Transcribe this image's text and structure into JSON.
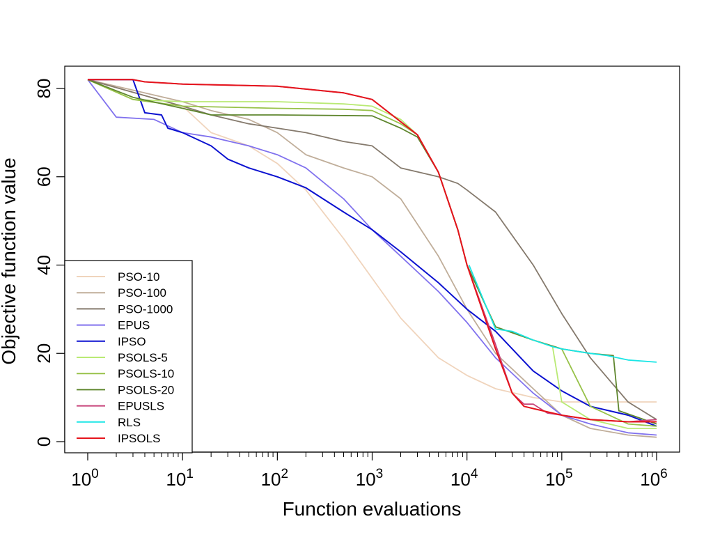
{
  "chart_data": {
    "type": "line",
    "title": "",
    "xlabel": "Function evaluations",
    "ylabel": "Objective function value",
    "xscale": "log10",
    "xlim": [
      1,
      1000000
    ],
    "ylim": [
      0,
      82
    ],
    "x_ticks": [
      {
        "base": "10",
        "exp": "0",
        "value": 1
      },
      {
        "base": "10",
        "exp": "1",
        "value": 10
      },
      {
        "base": "10",
        "exp": "2",
        "value": 100
      },
      {
        "base": "10",
        "exp": "3",
        "value": 1000
      },
      {
        "base": "10",
        "exp": "4",
        "value": 10000
      },
      {
        "base": "10",
        "exp": "5",
        "value": 100000
      },
      {
        "base": "10",
        "exp": "6",
        "value": 1000000
      }
    ],
    "y_ticks": [
      {
        "label": "0",
        "value": 0
      },
      {
        "label": "20",
        "value": 20
      },
      {
        "label": "40",
        "value": 40
      },
      {
        "label": "60",
        "value": 60
      },
      {
        "label": "80",
        "value": 80
      }
    ],
    "legend_position": "bottom-left",
    "series": [
      {
        "name": "PSO-10",
        "color": "#f0d4bc",
        "points": [
          [
            1,
            82
          ],
          [
            10,
            76
          ],
          [
            20,
            70
          ],
          [
            50,
            67
          ],
          [
            100,
            63
          ],
          [
            200,
            57
          ],
          [
            500,
            46
          ],
          [
            1000,
            37
          ],
          [
            2000,
            28
          ],
          [
            5000,
            19
          ],
          [
            10000,
            15
          ],
          [
            20000,
            12
          ],
          [
            50000,
            10
          ],
          [
            100000,
            9
          ],
          [
            1000000,
            9
          ]
        ]
      },
      {
        "name": "PSO-100",
        "color": "#c0ae9a",
        "points": [
          [
            1,
            82
          ],
          [
            10,
            77
          ],
          [
            20,
            75
          ],
          [
            50,
            73
          ],
          [
            100,
            70
          ],
          [
            200,
            65
          ],
          [
            500,
            62
          ],
          [
            1000,
            60
          ],
          [
            2000,
            55
          ],
          [
            5000,
            42
          ],
          [
            10000,
            30
          ],
          [
            20000,
            20
          ],
          [
            50000,
            12
          ],
          [
            100000,
            6
          ],
          [
            200000,
            3
          ],
          [
            500000,
            1.5
          ],
          [
            1000000,
            1
          ]
        ]
      },
      {
        "name": "PSO-1000",
        "color": "#857a6d",
        "points": [
          [
            1,
            82
          ],
          [
            10,
            76
          ],
          [
            20,
            74
          ],
          [
            50,
            72
          ],
          [
            100,
            71
          ],
          [
            200,
            70
          ],
          [
            500,
            68
          ],
          [
            1000,
            67
          ],
          [
            2000,
            62
          ],
          [
            5000,
            60
          ],
          [
            8000,
            58.5
          ],
          [
            10000,
            57
          ],
          [
            20000,
            52
          ],
          [
            50000,
            40
          ],
          [
            100000,
            29
          ],
          [
            200000,
            19
          ],
          [
            500000,
            9
          ],
          [
            1000000,
            5
          ]
        ]
      },
      {
        "name": "EPUS",
        "color": "#8172ee",
        "points": [
          [
            1,
            82
          ],
          [
            2,
            73.5
          ],
          [
            5,
            73
          ],
          [
            10,
            70
          ],
          [
            20,
            69
          ],
          [
            50,
            67
          ],
          [
            100,
            65
          ],
          [
            200,
            62
          ],
          [
            500,
            55
          ],
          [
            1000,
            48
          ],
          [
            2000,
            42
          ],
          [
            5000,
            34
          ],
          [
            10000,
            27
          ],
          [
            20000,
            19
          ],
          [
            50000,
            11
          ],
          [
            100000,
            6
          ],
          [
            200000,
            4
          ],
          [
            500000,
            2
          ],
          [
            1000000,
            1.5
          ]
        ]
      },
      {
        "name": "IPSO",
        "color": "#0b11d0",
        "points": [
          [
            1,
            82
          ],
          [
            3,
            82
          ],
          [
            4,
            74.5
          ],
          [
            6,
            74
          ],
          [
            7,
            71
          ],
          [
            10,
            70
          ],
          [
            20,
            67
          ],
          [
            30,
            64
          ],
          [
            50,
            62
          ],
          [
            100,
            60
          ],
          [
            200,
            57.5
          ],
          [
            500,
            52
          ],
          [
            1000,
            48
          ],
          [
            2000,
            43
          ],
          [
            5000,
            36
          ],
          [
            10000,
            30
          ],
          [
            20000,
            25
          ],
          [
            50000,
            16
          ],
          [
            100000,
            11.5
          ],
          [
            200000,
            8
          ],
          [
            500000,
            6
          ],
          [
            1000000,
            3.5
          ]
        ]
      },
      {
        "name": "PSOLS-5",
        "color": "#b9ea74",
        "points": [
          [
            1,
            82
          ],
          [
            3,
            77.5
          ],
          [
            10,
            77
          ],
          [
            100,
            77
          ],
          [
            500,
            76.5
          ],
          [
            1000,
            76
          ],
          [
            2000,
            73
          ],
          [
            3000,
            69.5
          ],
          [
            5000,
            61
          ],
          [
            8000,
            48
          ],
          [
            10000,
            40
          ],
          [
            20000,
            26
          ],
          [
            50000,
            23
          ],
          [
            80000,
            21.5
          ],
          [
            100000,
            9
          ],
          [
            200000,
            5
          ],
          [
            500000,
            3
          ],
          [
            1000000,
            3
          ]
        ]
      },
      {
        "name": "PSOLS-10",
        "color": "#98c24a",
        "points": [
          [
            1,
            82
          ],
          [
            3,
            77.5
          ],
          [
            10,
            76
          ],
          [
            100,
            75.5
          ],
          [
            500,
            75.3
          ],
          [
            1000,
            75
          ],
          [
            2000,
            72
          ],
          [
            3000,
            69.5
          ],
          [
            5000,
            61
          ],
          [
            8000,
            48
          ],
          [
            10000,
            40
          ],
          [
            20000,
            26
          ],
          [
            50000,
            23
          ],
          [
            100000,
            21
          ],
          [
            200000,
            8
          ],
          [
            500000,
            4
          ],
          [
            1000000,
            3.5
          ]
        ]
      },
      {
        "name": "PSOLS-20",
        "color": "#5f862e",
        "points": [
          [
            1,
            82
          ],
          [
            3,
            78
          ],
          [
            10,
            75.5
          ],
          [
            20,
            74
          ],
          [
            100,
            74
          ],
          [
            1000,
            73.8
          ],
          [
            2000,
            71
          ],
          [
            3000,
            69
          ],
          [
            5000,
            61
          ],
          [
            8000,
            48
          ],
          [
            10000,
            40
          ],
          [
            20000,
            26
          ],
          [
            50000,
            23
          ],
          [
            100000,
            21
          ],
          [
            200000,
            20
          ],
          [
            350000,
            19.5
          ],
          [
            400000,
            7
          ],
          [
            1000000,
            4
          ]
        ]
      },
      {
        "name": "EPUSLS",
        "color": "#c8447a",
        "points": [
          [
            1,
            82
          ],
          [
            3,
            82
          ],
          [
            4,
            81.5
          ],
          [
            10,
            81
          ],
          [
            100,
            80.5
          ],
          [
            500,
            79
          ],
          [
            1000,
            77.5
          ],
          [
            3000,
            69.5
          ],
          [
            5000,
            61
          ],
          [
            8000,
            48
          ],
          [
            10000,
            40
          ],
          [
            20000,
            22
          ],
          [
            30000,
            11
          ],
          [
            40000,
            8.5
          ],
          [
            50000,
            8.5
          ],
          [
            70000,
            6.5
          ],
          [
            100000,
            6
          ],
          [
            200000,
            5
          ],
          [
            500000,
            4.5
          ],
          [
            1000000,
            5
          ]
        ]
      },
      {
        "name": "RLS",
        "color": "#1ae6e6",
        "points": [
          [
            10500,
            40
          ],
          [
            20000,
            25.5
          ],
          [
            30000,
            25
          ],
          [
            50000,
            23
          ],
          [
            80000,
            21.5
          ],
          [
            100000,
            21
          ],
          [
            200000,
            20
          ],
          [
            300000,
            19.5
          ],
          [
            500000,
            18.5
          ],
          [
            1000000,
            18
          ]
        ]
      },
      {
        "name": "IPSOLS",
        "color": "#e5141c",
        "points": [
          [
            1,
            82
          ],
          [
            3,
            82
          ],
          [
            4,
            81.5
          ],
          [
            10,
            81
          ],
          [
            100,
            80.5
          ],
          [
            500,
            79
          ],
          [
            1000,
            77.5
          ],
          [
            3000,
            69.5
          ],
          [
            5000,
            61
          ],
          [
            8000,
            48
          ],
          [
            10000,
            40
          ],
          [
            20000,
            21
          ],
          [
            30000,
            11
          ],
          [
            40000,
            8
          ],
          [
            50000,
            7.5
          ],
          [
            100000,
            6
          ],
          [
            200000,
            5
          ],
          [
            500000,
            4.5
          ],
          [
            1000000,
            4.5
          ]
        ]
      }
    ]
  }
}
